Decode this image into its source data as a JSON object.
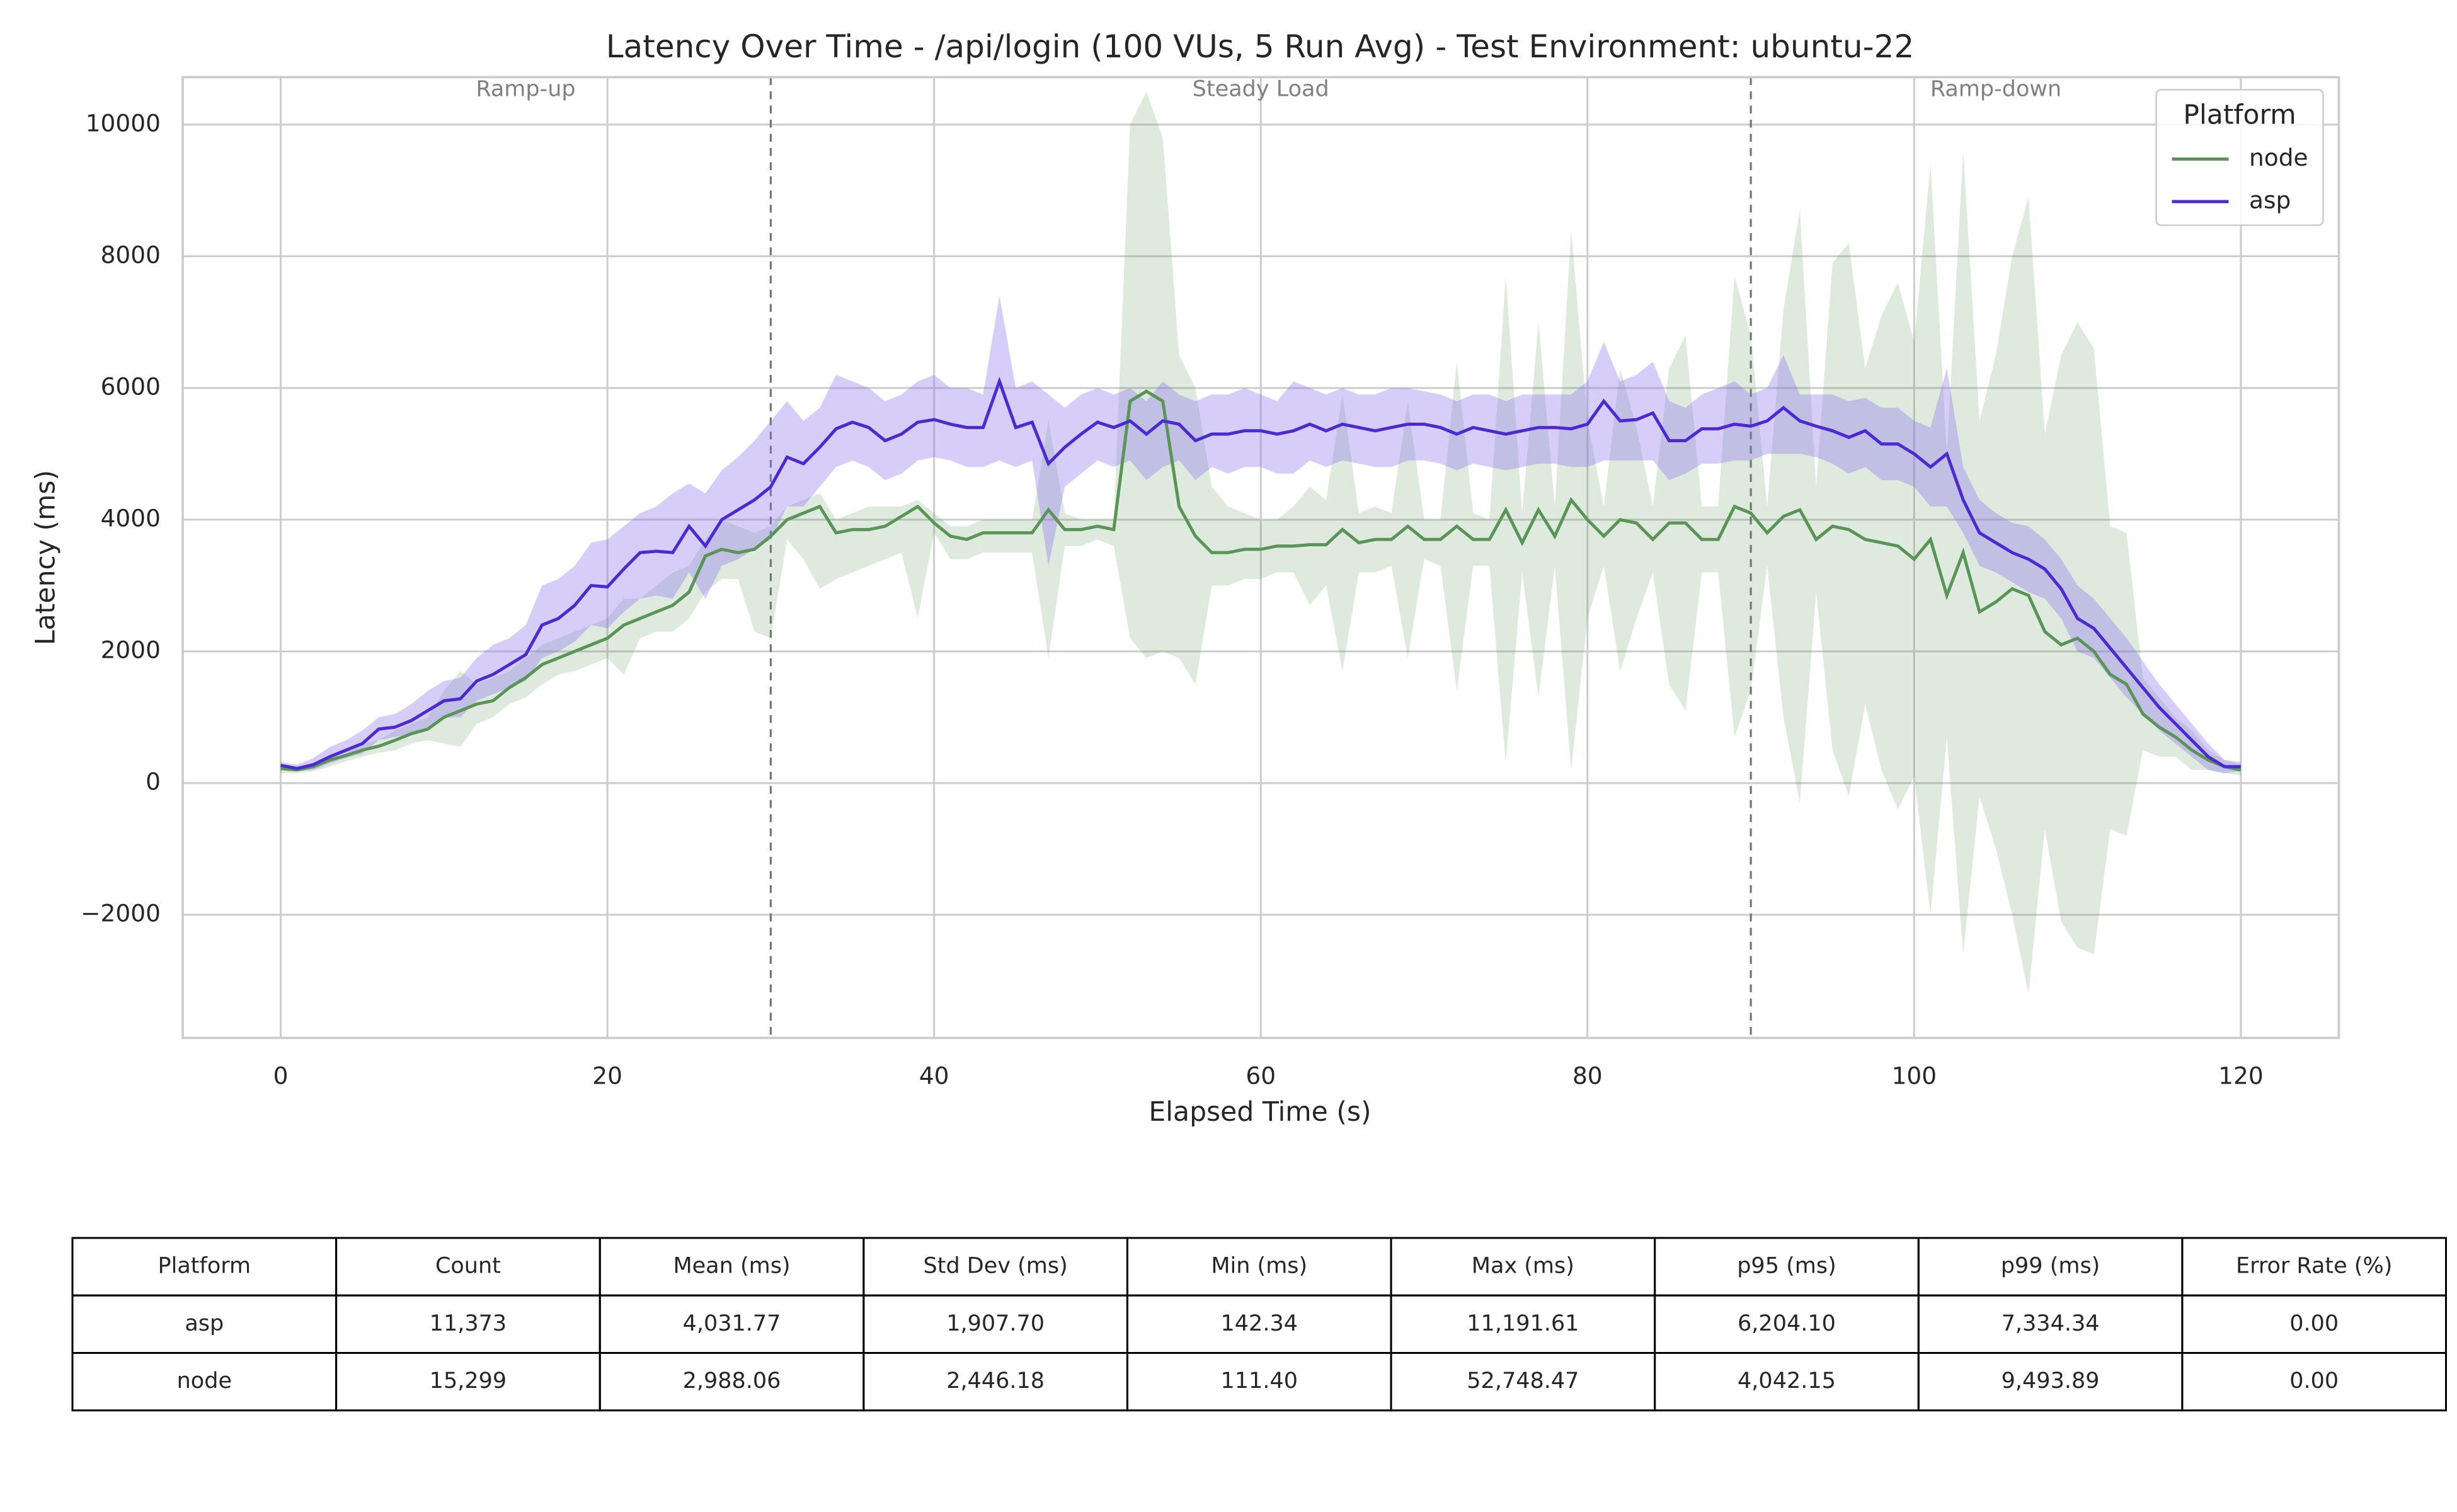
{
  "chart_data": {
    "type": "line",
    "title": "Latency Over Time - /api/login (100 VUs, 5 Run Avg) - Test Environment: ubuntu-22",
    "x_label": "Elapsed Time (s)",
    "y_label": "Latency (ms)",
    "xlim": [
      -6,
      126
    ],
    "xticks": [
      0,
      20,
      40,
      60,
      80,
      100,
      120
    ],
    "ylim": [
      -3870,
      10720
    ],
    "yticks": [
      {
        "value": -2000,
        "label": "−2000"
      },
      0,
      2000,
      4000,
      6000,
      8000,
      10000
    ],
    "grid": true,
    "legend_title": "Platform",
    "legend_position": "upper right",
    "phases": [
      {
        "label": "Ramp-up",
        "start": 0,
        "end": 30
      },
      {
        "label": "Steady Load",
        "start": 30,
        "end": 90
      },
      {
        "label": "Ramp-down",
        "start": 90,
        "end": 120
      }
    ],
    "x": [
      0,
      1,
      2,
      3,
      4,
      5,
      6,
      7,
      8,
      9,
      10,
      11,
      12,
      13,
      14,
      15,
      16,
      17,
      18,
      19,
      20,
      21,
      22,
      23,
      24,
      25,
      26,
      27,
      28,
      29,
      30,
      31,
      32,
      33,
      34,
      35,
      36,
      37,
      38,
      39,
      40,
      41,
      42,
      43,
      44,
      45,
      46,
      47,
      48,
      49,
      50,
      51,
      52,
      53,
      54,
      55,
      56,
      57,
      58,
      59,
      60,
      61,
      62,
      63,
      64,
      65,
      66,
      67,
      68,
      69,
      70,
      71,
      72,
      73,
      74,
      75,
      76,
      77,
      78,
      79,
      80,
      81,
      82,
      83,
      84,
      85,
      86,
      87,
      88,
      89,
      90,
      91,
      92,
      93,
      94,
      95,
      96,
      97,
      98,
      99,
      100,
      101,
      102,
      103,
      104,
      105,
      106,
      107,
      108,
      109,
      110,
      111,
      112,
      113,
      114,
      115,
      116,
      117,
      118,
      119,
      120
    ],
    "series": [
      {
        "name": "node",
        "color": "#5a9457",
        "band_color": "#5a9457",
        "values": [
          220,
          200,
          250,
          350,
          420,
          500,
          560,
          650,
          750,
          820,
          1000,
          1100,
          1200,
          1250,
          1450,
          1600,
          1800,
          1900,
          2000,
          2100,
          2200,
          2400,
          2500,
          2600,
          2700,
          2900,
          3450,
          3550,
          3500,
          3550,
          3750,
          4000,
          4100,
          4200,
          3800,
          3850,
          3850,
          3900,
          4050,
          4200,
          3950,
          3750,
          3700,
          3800,
          3800,
          3800,
          3800,
          4150,
          3850,
          3850,
          3900,
          3850,
          5800,
          5950,
          5800,
          4200,
          3750,
          3500,
          3500,
          3550,
          3550,
          3600,
          3600,
          3620,
          3620,
          3850,
          3650,
          3700,
          3700,
          3900,
          3700,
          3700,
          3900,
          3700,
          3700,
          4150,
          3650,
          4150,
          3750,
          4300,
          4000,
          3750,
          4000,
          3950,
          3700,
          3950,
          3950,
          3700,
          3700,
          4200,
          4100,
          3800,
          4050,
          4150,
          3700,
          3900,
          3850,
          3700,
          3650,
          3600,
          3400,
          3700,
          2850,
          3500,
          2600,
          2750,
          2950,
          2850,
          2300,
          2100,
          2200,
          2000,
          1650,
          1500,
          1050,
          850,
          700,
          500,
          350,
          250,
          200
        ],
        "lower": [
          150,
          150,
          180,
          250,
          330,
          400,
          460,
          500,
          600,
          650,
          600,
          550,
          900,
          1000,
          1200,
          1300,
          1500,
          1650,
          1700,
          1800,
          1900,
          1650,
          2200,
          2300,
          2300,
          2500,
          2900,
          3100,
          3100,
          2300,
          2200,
          3700,
          3400,
          2950,
          3100,
          3200,
          3300,
          3400,
          3500,
          2500,
          3800,
          3400,
          3400,
          3500,
          3500,
          3500,
          3500,
          1900,
          3600,
          3600,
          3700,
          3600,
          2200,
          1900,
          2000,
          1900,
          1500,
          3000,
          3000,
          3100,
          3100,
          3200,
          3200,
          2700,
          3000,
          1700,
          3200,
          3200,
          3300,
          1900,
          3400,
          3300,
          1400,
          3300,
          3300,
          300,
          3200,
          1300,
          3300,
          200,
          2500,
          3300,
          1700,
          2500,
          3200,
          1500,
          1100,
          3200,
          3200,
          700,
          1400,
          3300,
          1000,
          -300,
          2900,
          500,
          -200,
          1200,
          200,
          -400,
          100,
          -2000,
          700,
          -2600,
          -200,
          -1000,
          -2000,
          -3200,
          -700,
          -2100,
          -2500,
          -2600,
          -700,
          -800,
          500,
          400,
          400,
          200,
          200,
          150,
          120
        ],
        "upper": [
          280,
          260,
          300,
          420,
          500,
          600,
          650,
          800,
          900,
          1000,
          1400,
          1700,
          1500,
          1600,
          1700,
          1900,
          2100,
          2200,
          2300,
          2400,
          2500,
          2800,
          2800,
          3000,
          3200,
          3300,
          3700,
          4000,
          3900,
          3800,
          3900,
          4200,
          4300,
          4400,
          4000,
          4100,
          4200,
          4200,
          4200,
          4300,
          4100,
          3900,
          3900,
          4000,
          4000,
          4000,
          4000,
          5500,
          4100,
          4000,
          4000,
          4000,
          10000,
          10500,
          9800,
          6500,
          6000,
          4500,
          4200,
          4100,
          4000,
          4000,
          4200,
          4500,
          4300,
          5900,
          4100,
          4200,
          4100,
          5800,
          4000,
          4000,
          6400,
          4100,
          4000,
          7700,
          4100,
          7000,
          4200,
          8400,
          5500,
          4200,
          6300,
          5400,
          4200,
          6300,
          6800,
          4200,
          4200,
          7700,
          6800,
          4200,
          7200,
          8700,
          4500,
          7900,
          8200,
          6300,
          7100,
          7600,
          6700,
          9400,
          5000,
          9600,
          5500,
          6500,
          8000,
          8900,
          5300,
          6500,
          7000,
          6600,
          3900,
          3800,
          1600,
          1300,
          1000,
          800,
          500,
          350,
          280
        ]
      },
      {
        "name": "asp",
        "color": "#4b2bd1",
        "band_color": "#8c6fee",
        "values": [
          270,
          220,
          280,
          400,
          500,
          600,
          820,
          850,
          950,
          1100,
          1250,
          1280,
          1550,
          1650,
          1800,
          1950,
          2400,
          2500,
          2700,
          3000,
          2980,
          3250,
          3500,
          3520,
          3500,
          3900,
          3600,
          4000,
          4150,
          4300,
          4500,
          4950,
          4850,
          5100,
          5380,
          5480,
          5400,
          5200,
          5300,
          5480,
          5520,
          5450,
          5400,
          5400,
          6100,
          5400,
          5480,
          4850,
          5100,
          5300,
          5480,
          5400,
          5500,
          5300,
          5500,
          5450,
          5200,
          5300,
          5300,
          5350,
          5350,
          5300,
          5350,
          5450,
          5350,
          5450,
          5400,
          5350,
          5400,
          5450,
          5450,
          5400,
          5300,
          5400,
          5350,
          5300,
          5350,
          5400,
          5400,
          5380,
          5450,
          5800,
          5500,
          5520,
          5620,
          5200,
          5200,
          5380,
          5380,
          5450,
          5420,
          5500,
          5700,
          5500,
          5420,
          5350,
          5250,
          5350,
          5150,
          5150,
          5000,
          4800,
          5000,
          4300,
          3800,
          3650,
          3500,
          3400,
          3250,
          2950,
          2500,
          2350,
          2050,
          1750,
          1450,
          1150,
          900,
          650,
          400,
          250,
          250
        ],
        "lower": [
          220,
          180,
          200,
          300,
          380,
          450,
          650,
          700,
          750,
          850,
          1000,
          1000,
          1250,
          1350,
          1450,
          1550,
          1900,
          2000,
          2150,
          2400,
          2350,
          2600,
          2800,
          2850,
          2800,
          3200,
          2800,
          3300,
          3400,
          3550,
          3700,
          4200,
          4200,
          4500,
          4800,
          4900,
          4800,
          4600,
          4700,
          4900,
          4950,
          4900,
          4800,
          4800,
          4900,
          4800,
          4900,
          3300,
          4500,
          4700,
          4900,
          4800,
          4900,
          4600,
          4800,
          4900,
          4600,
          4800,
          4700,
          4800,
          4800,
          4700,
          4700,
          4900,
          4800,
          4900,
          4850,
          4800,
          4800,
          4900,
          4900,
          4850,
          4750,
          4850,
          4800,
          4750,
          4800,
          4850,
          4850,
          4800,
          4800,
          4900,
          4900,
          4900,
          4900,
          4600,
          4700,
          4850,
          4850,
          4900,
          4900,
          5000,
          5000,
          5000,
          4950,
          4850,
          4700,
          4800,
          4600,
          4600,
          4500,
          4200,
          4200,
          3800,
          3300,
          3200,
          3050,
          2900,
          2800,
          2500,
          2000,
          1900,
          1600,
          1300,
          1050,
          800,
          600,
          400,
          200,
          150,
          180
        ],
        "upper": [
          320,
          280,
          380,
          550,
          650,
          800,
          1000,
          1050,
          1200,
          1400,
          1550,
          1600,
          1900,
          2100,
          2200,
          2400,
          3000,
          3100,
          3300,
          3650,
          3700,
          3900,
          4100,
          4200,
          4400,
          4550,
          4400,
          4750,
          4950,
          5200,
          5500,
          5800,
          5500,
          5700,
          6200,
          6100,
          6000,
          5800,
          5900,
          6100,
          6200,
          6000,
          6000,
          5900,
          7400,
          6000,
          6100,
          5900,
          5700,
          5900,
          6000,
          5900,
          6000,
          5800,
          6100,
          5900,
          5800,
          5900,
          5900,
          6000,
          5900,
          5800,
          6100,
          6000,
          5900,
          6000,
          5900,
          5900,
          6000,
          6000,
          5950,
          5900,
          5800,
          5900,
          5900,
          5800,
          5900,
          5900,
          5900,
          5900,
          6100,
          6700,
          6100,
          6200,
          6400,
          5800,
          5700,
          5900,
          6000,
          6100,
          5900,
          6000,
          6500,
          5900,
          5900,
          5900,
          5800,
          5850,
          5700,
          5700,
          5500,
          5400,
          6300,
          4800,
          4300,
          4100,
          3950,
          3900,
          3700,
          3400,
          3000,
          2800,
          2500,
          2200,
          1850,
          1500,
          1200,
          900,
          600,
          350,
          320
        ]
      }
    ]
  },
  "table": {
    "header": [
      "Platform",
      "Count",
      "Mean (ms)",
      "Std Dev (ms)",
      "Min (ms)",
      "Max (ms)",
      "p95 (ms)",
      "p99 (ms)",
      "Error Rate (%)"
    ],
    "rows": [
      [
        "asp",
        "11,373",
        "4,031.77",
        "1,907.70",
        "142.34",
        "11,191.61",
        "6,204.10",
        "7,334.34",
        "0.00"
      ],
      [
        "node",
        "15,299",
        "2,988.06",
        "2,446.18",
        "111.40",
        "52,748.47",
        "4,042.15",
        "9,493.89",
        "0.00"
      ]
    ]
  }
}
